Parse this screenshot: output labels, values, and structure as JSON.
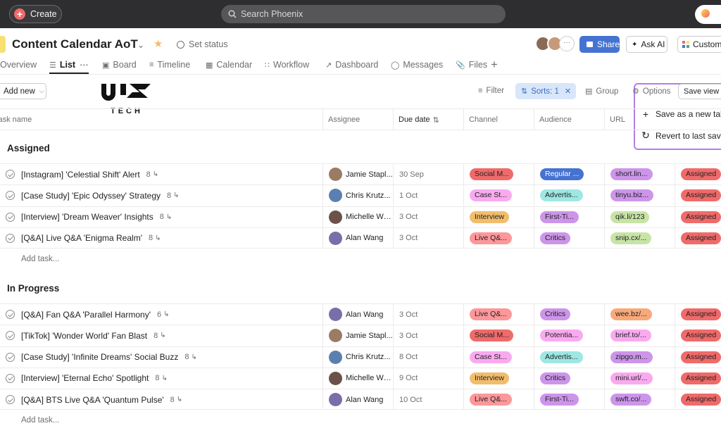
{
  "topbar": {
    "create_label": "Create",
    "search_placeholder": "Search Phoenix"
  },
  "project": {
    "title": "Content Calendar AoT",
    "set_status_label": "Set status",
    "share_label": "Share",
    "ask_ai_label": "Ask AI",
    "customize_label": "Customiz"
  },
  "tabs": [
    {
      "label": "Overview",
      "icon": "overview-icon"
    },
    {
      "label": "List",
      "icon": "list-icon",
      "active": true
    },
    {
      "label": "Board",
      "icon": "board-icon"
    },
    {
      "label": "Timeline",
      "icon": "timeline-icon"
    },
    {
      "label": "Calendar",
      "icon": "calendar-icon"
    },
    {
      "label": "Workflow",
      "icon": "workflow-icon"
    },
    {
      "label": "Dashboard",
      "icon": "dashboard-icon"
    },
    {
      "label": "Messages",
      "icon": "messages-icon"
    },
    {
      "label": "Files",
      "icon": "files-icon"
    }
  ],
  "toolbar": {
    "add_new_label": "Add new",
    "logo_text": "TECH",
    "filter_label": "Filter",
    "sorts_label": "Sorts: 1",
    "group_label": "Group",
    "options_label": "Options",
    "save_view_label": "Save view"
  },
  "options_menu": {
    "save_as_new": "Save as a new tab",
    "revert": "Revert to last save"
  },
  "columns": {
    "task_name": "Task name",
    "assignee": "Assignee",
    "due_date": "Due date",
    "channel": "Channel",
    "audience": "Audience",
    "url": "URL"
  },
  "colors": {
    "social": "#f06a6a",
    "case_study": "#f9aaef",
    "interview": "#f1bd6c",
    "live_qa": "#fc979a",
    "regular": "#4573d2",
    "advertis": "#9ee7e3",
    "first_time": "#cd95ea",
    "critics": "#cd95ea",
    "potential": "#f9aaef",
    "url_purple": "#cd95ea",
    "url_pink": "#f9aaef",
    "url_green": "#c7e4a6",
    "url_orange": "#f8a97a",
    "assigned": "#f06a6a"
  },
  "sections": [
    {
      "title": "Assigned",
      "add_task_label": "Add task...",
      "rows": [
        {
          "name": "[Instagram] 'Celestial Shift' Alert",
          "subtasks": "8",
          "assignee": "Jamie Stapl...",
          "due": "30 Sep",
          "channel": "Social M...",
          "audience": "Regular ...",
          "url": "short.lin...",
          "status": "Assigned"
        },
        {
          "name": "[Case Study] 'Epic Odyssey' Strategy",
          "subtasks": "8",
          "assignee": "Chris Krutz...",
          "due": "1 Oct",
          "channel": "Case St...",
          "audience": "Advertis...",
          "url": "tinyu.biz...",
          "status": "Assigned"
        },
        {
          "name": "[Interview] 'Dream Weaver' Insights",
          "subtasks": "8",
          "assignee": "Michelle We...",
          "due": "3 Oct",
          "channel": "Interview",
          "audience": "First-Ti...",
          "url": "qik.li/123",
          "status": "Assigned"
        },
        {
          "name": "[Q&A] Live Q&A 'Enigma Realm'",
          "subtasks": "8",
          "assignee": "Alan Wang",
          "due": "3 Oct",
          "channel": "Live Q&...",
          "audience": "Critics",
          "url": "snip.cx/...",
          "status": "Assigned"
        }
      ]
    },
    {
      "title": "In Progress",
      "add_task_label": "Add task...",
      "rows": [
        {
          "name": "[Q&A] Fan Q&A 'Parallel Harmony'",
          "subtasks": "6",
          "assignee": "Alan Wang",
          "due": "3 Oct",
          "channel": "Live Q&...",
          "audience": "Critics",
          "url": "wee.bz/...",
          "status": "Assigned"
        },
        {
          "name": "[TikTok] 'Wonder World' Fan Blast",
          "subtasks": "8",
          "assignee": "Jamie Stapl...",
          "due": "3 Oct",
          "channel": "Social M...",
          "audience": "Potentia...",
          "url": "brief.to/...",
          "status": "Assigned"
        },
        {
          "name": "[Case Study] 'Infinite Dreams' Social Buzz",
          "subtasks": "8",
          "assignee": "Chris Krutz...",
          "due": "8 Oct",
          "channel": "Case St...",
          "audience": "Advertis...",
          "url": "zipgo.m...",
          "status": "Assigned"
        },
        {
          "name": "[Interview] 'Eternal Echo' Spotlight",
          "subtasks": "8",
          "assignee": "Michelle We...",
          "due": "9 Oct",
          "channel": "Interview",
          "audience": "Critics",
          "url": "mini.url/...",
          "status": "Assigned"
        },
        {
          "name": "[Q&A] BTS Live Q&A 'Quantum Pulse'",
          "subtasks": "8",
          "assignee": "Alan Wang",
          "due": "10 Oct",
          "channel": "Live Q&...",
          "audience": "First-Ti...",
          "url": "swft.co/...",
          "status": "Assigned"
        }
      ]
    }
  ]
}
